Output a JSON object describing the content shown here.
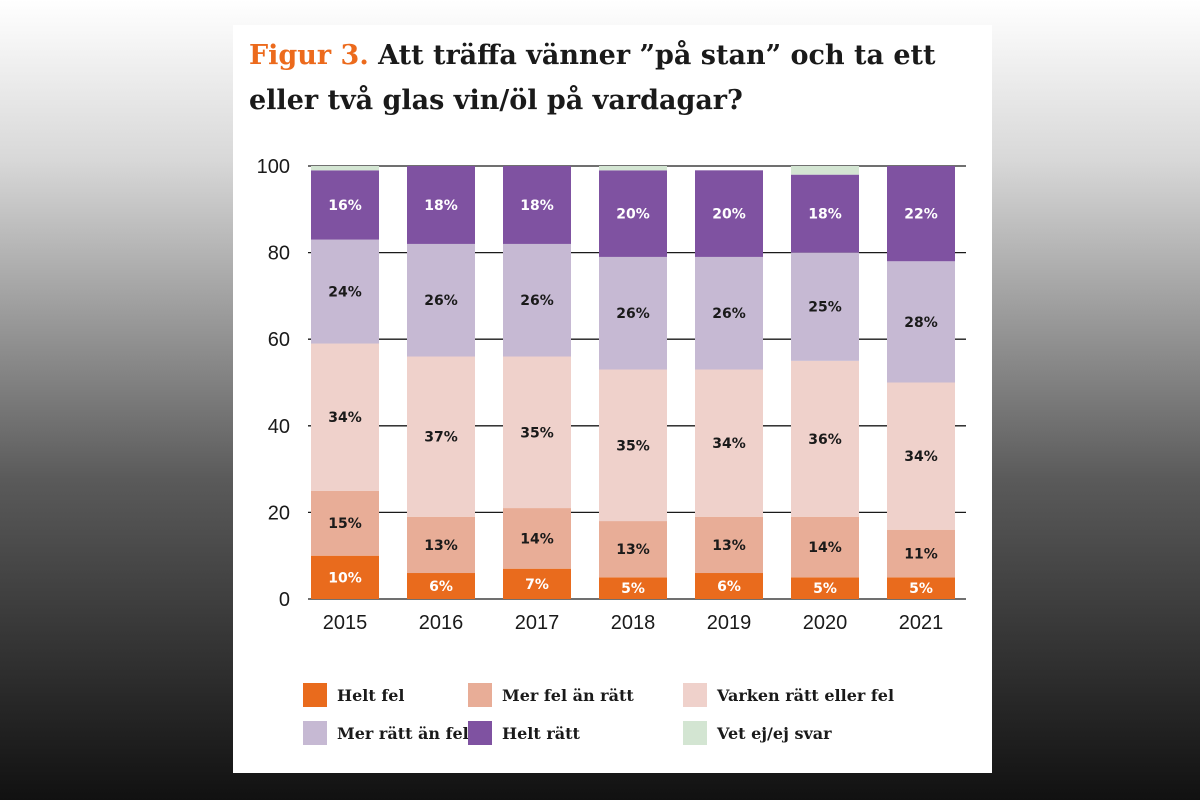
{
  "header": {
    "figure_label": "Figur 3.",
    "title": "Att träffa vänner ”på stan” och ta ett eller två glas vin/öl på vardagar?"
  },
  "colors": {
    "Helt fel": "#e96b1d",
    "Mer fel än rätt": "#e8ad97",
    "Varken rätt eller fel": "#efd1cb",
    "Mer rätt än fel": "#c6b9d3",
    "Helt rätt": "#7f52a1",
    "Vet ej/ej svar": "#d3e5d2"
  },
  "chart_data": {
    "type": "bar",
    "stacked": true,
    "title": "Att träffa vänner ”på stan” och ta ett eller två glas vin/öl på vardagar?",
    "categories": [
      "2015",
      "2016",
      "2017",
      "2018",
      "2019",
      "2020",
      "2021"
    ],
    "ylim": [
      0,
      100
    ],
    "yticks": [
      0,
      20,
      40,
      60,
      80,
      100
    ],
    "grid": true,
    "legend_position": "bottom",
    "series": [
      {
        "name": "Helt fel",
        "values": [
          10,
          6,
          7,
          5,
          6,
          5,
          5
        ],
        "labels": [
          "10%",
          "6%",
          "7%",
          "5%",
          "6%",
          "5%",
          "5%"
        ]
      },
      {
        "name": "Mer fel än rätt",
        "values": [
          15,
          13,
          14,
          13,
          13,
          14,
          11
        ],
        "labels": [
          "15%",
          "13%",
          "14%",
          "13%",
          "13%",
          "14%",
          "11%"
        ]
      },
      {
        "name": "Varken rätt eller fel",
        "values": [
          34,
          37,
          35,
          35,
          34,
          36,
          34
        ],
        "labels": [
          "34%",
          "37%",
          "35%",
          "35%",
          "34%",
          "36%",
          "34%"
        ]
      },
      {
        "name": "Mer rätt än fel",
        "values": [
          24,
          26,
          26,
          26,
          26,
          25,
          28
        ],
        "labels": [
          "24%",
          "26%",
          "26%",
          "26%",
          "26%",
          "25%",
          "28%"
        ]
      },
      {
        "name": "Helt rätt",
        "values": [
          16,
          18,
          18,
          20,
          20,
          18,
          22
        ],
        "labels": [
          "16%",
          "18%",
          "18%",
          "20%",
          "20%",
          "18%",
          "22%"
        ]
      },
      {
        "name": "Vet ej/ej svar",
        "values": [
          1,
          0,
          0,
          1,
          0,
          2,
          0
        ],
        "labels": [
          "",
          "",
          "",
          "",
          "",
          "",
          ""
        ]
      }
    ]
  }
}
